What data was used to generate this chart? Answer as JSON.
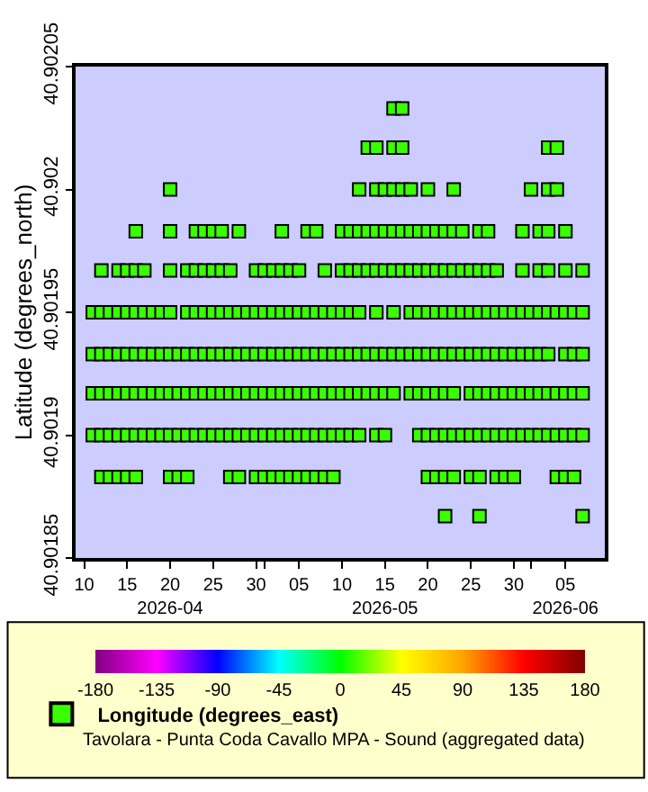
{
  "chart_data": {
    "type": "scatter",
    "ylabel": "Latitude (degrees_north)",
    "marker": "square",
    "legend": "bottom",
    "grid": false,
    "ylim": [
      40.90185,
      40.90205
    ],
    "yticks": [
      40.90185,
      40.9019,
      40.90195,
      40.902,
      40.90205
    ],
    "xlim": [
      "2026-04-09",
      "2026-06-09T14:00"
    ],
    "xticks": [
      {
        "value": "2026-04-10",
        "label": "10"
      },
      {
        "value": "2026-04-15",
        "label": "15"
      },
      {
        "value": "2026-04-20",
        "label": "20\n2026-04"
      },
      {
        "value": "2026-04-25",
        "label": "25"
      },
      {
        "value": "2026-04-30",
        "label": "30"
      },
      {
        "value": "2026-05-01",
        "label": null
      },
      {
        "value": "2026-05-05",
        "label": "05"
      },
      {
        "value": "2026-05-10",
        "label": "10"
      },
      {
        "value": "2026-05-15",
        "label": "15\n2026-05"
      },
      {
        "value": "2026-05-20",
        "label": "20"
      },
      {
        "value": "2026-05-25",
        "label": "25"
      },
      {
        "value": "2026-05-30",
        "label": "30"
      },
      {
        "value": "2026-06-01",
        "label": null
      },
      {
        "value": "2026-06-05",
        "label": "05\n2026-06"
      }
    ],
    "clim": [
      -180,
      180
    ],
    "cticks": [
      -180,
      -135,
      -90,
      -45,
      0,
      45,
      90,
      135,
      180
    ],
    "annotations": [
      "Tavolara - Punta Coda Cavallo MPA - Sound (aggregated data)"
    ],
    "series": [
      {
        "name": "Longitude (degrees_east)",
        "x": [
          "2026-05-16",
          "2026-05-17"
        ],
        "values": [
          40.902033,
          40.902033
        ],
        "cvalues": [
          10,
          10
        ]
      },
      {
        "x": [
          "2026-05-13",
          "2026-05-14",
          "2026-05-16",
          "2026-05-17",
          "2026-06-03",
          "2026-06-04"
        ],
        "values": [
          40.902017,
          40.902017,
          40.902017,
          40.902017,
          40.902017,
          40.902017
        ],
        "cvalues": [
          10,
          10,
          10,
          10,
          10,
          10
        ]
      },
      {
        "x": [
          "2026-04-20",
          "2026-05-12",
          "2026-05-14",
          "2026-05-15",
          "2026-05-16",
          "2026-05-17",
          "2026-05-18",
          "2026-05-20",
          "2026-05-23",
          "2026-06-01",
          "2026-06-03",
          "2026-06-04"
        ],
        "values": [
          40.902,
          40.902,
          40.902,
          40.902,
          40.902,
          40.902,
          40.902,
          40.902,
          40.902,
          40.902,
          40.902,
          40.902
        ],
        "cvalues": [
          10,
          10,
          10,
          10,
          10,
          10,
          10,
          10,
          10,
          10,
          10,
          10
        ]
      },
      {
        "x": [
          "2026-04-16",
          "2026-04-20",
          "2026-04-23",
          "2026-04-24",
          "2026-04-25",
          "2026-04-26",
          "2026-04-28",
          "2026-05-03",
          "2026-05-06",
          "2026-05-07",
          "2026-05-10",
          "2026-05-11",
          "2026-05-12",
          "2026-05-13",
          "2026-05-14",
          "2026-05-15",
          "2026-05-16",
          "2026-05-17",
          "2026-05-18",
          "2026-05-19",
          "2026-05-20",
          "2026-05-21",
          "2026-05-22",
          "2026-05-23",
          "2026-05-24",
          "2026-05-26",
          "2026-05-27",
          "2026-05-31",
          "2026-06-02",
          "2026-06-03",
          "2026-06-05"
        ],
        "values": [
          40.901983,
          40.901983,
          40.901983,
          40.901983,
          40.901983,
          40.901983,
          40.901983,
          40.901983,
          40.901983,
          40.901983,
          40.901983,
          40.901983,
          40.901983,
          40.901983,
          40.901983,
          40.901983,
          40.901983,
          40.901983,
          40.901983,
          40.901983,
          40.901983,
          40.901983,
          40.901983,
          40.901983,
          40.901983,
          40.901983,
          40.901983,
          40.901983,
          40.901983,
          40.901983,
          40.901983
        ],
        "cvalues": [
          10,
          10,
          10,
          10,
          10,
          10,
          10,
          10,
          10,
          10,
          10,
          10,
          10,
          10,
          10,
          10,
          10,
          10,
          10,
          10,
          10,
          10,
          10,
          10,
          10,
          10,
          10,
          10,
          10,
          10,
          10
        ]
      },
      {
        "x": [
          "2026-04-12",
          "2026-04-14",
          "2026-04-15",
          "2026-04-16",
          "2026-04-17",
          "2026-04-20",
          "2026-04-22",
          "2026-04-23",
          "2026-04-24",
          "2026-04-25",
          "2026-04-26",
          "2026-04-27",
          "2026-04-30",
          "2026-05-01",
          "2026-05-02",
          "2026-05-03",
          "2026-05-04",
          "2026-05-05",
          "2026-05-08",
          "2026-05-10",
          "2026-05-11",
          "2026-05-12",
          "2026-05-13",
          "2026-05-14",
          "2026-05-15",
          "2026-05-16",
          "2026-05-17",
          "2026-05-18",
          "2026-05-19",
          "2026-05-20",
          "2026-05-21",
          "2026-05-22",
          "2026-05-23",
          "2026-05-24",
          "2026-05-25",
          "2026-05-26",
          "2026-05-27",
          "2026-05-28",
          "2026-05-31",
          "2026-06-02",
          "2026-06-03",
          "2026-06-05",
          "2026-06-07"
        ],
        "values": [
          40.901967,
          40.901967,
          40.901967,
          40.901967,
          40.901967,
          40.901967,
          40.901967,
          40.901967,
          40.901967,
          40.901967,
          40.901967,
          40.901967,
          40.901967,
          40.901967,
          40.901967,
          40.901967,
          40.901967,
          40.901967,
          40.901967,
          40.901967,
          40.901967,
          40.901967,
          40.901967,
          40.901967,
          40.901967,
          40.901967,
          40.901967,
          40.901967,
          40.901967,
          40.901967,
          40.901967,
          40.901967,
          40.901967,
          40.901967,
          40.901967,
          40.901967,
          40.901967,
          40.901967,
          40.901967,
          40.901967,
          40.901967,
          40.901967,
          40.901967
        ],
        "cvalues": [
          10,
          10,
          10,
          10,
          10,
          10,
          10,
          10,
          10,
          10,
          10,
          10,
          10,
          10,
          10,
          10,
          10,
          10,
          10,
          10,
          10,
          10,
          10,
          10,
          10,
          10,
          10,
          10,
          10,
          10,
          10,
          10,
          10,
          10,
          10,
          10,
          10,
          10,
          10,
          10,
          10,
          10,
          10
        ]
      },
      {
        "x": [
          "2026-04-11",
          "2026-04-12",
          "2026-04-13",
          "2026-04-14",
          "2026-04-15",
          "2026-04-16",
          "2026-04-17",
          "2026-04-18",
          "2026-04-19",
          "2026-04-20",
          "2026-04-22",
          "2026-04-23",
          "2026-04-24",
          "2026-04-25",
          "2026-04-26",
          "2026-04-27",
          "2026-04-28",
          "2026-04-29",
          "2026-04-30",
          "2026-05-01",
          "2026-05-02",
          "2026-05-03",
          "2026-05-04",
          "2026-05-05",
          "2026-05-06",
          "2026-05-07",
          "2026-05-08",
          "2026-05-09",
          "2026-05-10",
          "2026-05-11",
          "2026-05-12",
          "2026-05-14",
          "2026-05-16",
          "2026-05-18",
          "2026-05-19",
          "2026-05-20",
          "2026-05-21",
          "2026-05-22",
          "2026-05-23",
          "2026-05-24",
          "2026-05-25",
          "2026-05-26",
          "2026-05-27",
          "2026-05-28",
          "2026-05-29",
          "2026-05-30",
          "2026-05-31",
          "2026-06-01",
          "2026-06-02",
          "2026-06-03",
          "2026-06-04",
          "2026-06-05",
          "2026-06-06",
          "2026-06-07"
        ],
        "values": [
          40.90195,
          40.90195,
          40.90195,
          40.90195,
          40.90195,
          40.90195,
          40.90195,
          40.90195,
          40.90195,
          40.90195,
          40.90195,
          40.90195,
          40.90195,
          40.90195,
          40.90195,
          40.90195,
          40.90195,
          40.90195,
          40.90195,
          40.90195,
          40.90195,
          40.90195,
          40.90195,
          40.90195,
          40.90195,
          40.90195,
          40.90195,
          40.90195,
          40.90195,
          40.90195,
          40.90195,
          40.90195,
          40.90195,
          40.90195,
          40.90195,
          40.90195,
          40.90195,
          40.90195,
          40.90195,
          40.90195,
          40.90195,
          40.90195,
          40.90195,
          40.90195,
          40.90195,
          40.90195,
          40.90195,
          40.90195,
          40.90195,
          40.90195,
          40.90195,
          40.90195,
          40.90195,
          40.90195
        ],
        "cvalues": [
          10,
          10,
          10,
          10,
          10,
          10,
          10,
          10,
          10,
          10,
          10,
          10,
          10,
          10,
          10,
          10,
          10,
          10,
          10,
          10,
          10,
          10,
          10,
          10,
          10,
          10,
          10,
          10,
          10,
          10,
          10,
          10,
          10,
          10,
          10,
          10,
          10,
          10,
          10,
          10,
          10,
          10,
          10,
          10,
          10,
          10,
          10,
          10,
          10,
          10,
          10,
          10,
          10,
          10
        ]
      },
      {
        "x": [
          "2026-04-11",
          "2026-04-12",
          "2026-04-13",
          "2026-04-14",
          "2026-04-15",
          "2026-04-16",
          "2026-04-17",
          "2026-04-18",
          "2026-04-19",
          "2026-04-20",
          "2026-04-21",
          "2026-04-22",
          "2026-04-23",
          "2026-04-24",
          "2026-04-25",
          "2026-04-26",
          "2026-04-27",
          "2026-04-28",
          "2026-04-29",
          "2026-04-30",
          "2026-05-01",
          "2026-05-02",
          "2026-05-03",
          "2026-05-04",
          "2026-05-05",
          "2026-05-06",
          "2026-05-07",
          "2026-05-08",
          "2026-05-09",
          "2026-05-10",
          "2026-05-11",
          "2026-05-12",
          "2026-05-13",
          "2026-05-14",
          "2026-05-15",
          "2026-05-16",
          "2026-05-17",
          "2026-05-18",
          "2026-05-19",
          "2026-05-20",
          "2026-05-21",
          "2026-05-22",
          "2026-05-23",
          "2026-05-24",
          "2026-05-25",
          "2026-05-26",
          "2026-05-27",
          "2026-05-28",
          "2026-05-29",
          "2026-05-30",
          "2026-05-31",
          "2026-06-01",
          "2026-06-02",
          "2026-06-03",
          "2026-06-05",
          "2026-06-06",
          "2026-06-07"
        ],
        "values": [
          40.901933,
          40.901933,
          40.901933,
          40.901933,
          40.901933,
          40.901933,
          40.901933,
          40.901933,
          40.901933,
          40.901933,
          40.901933,
          40.901933,
          40.901933,
          40.901933,
          40.901933,
          40.901933,
          40.901933,
          40.901933,
          40.901933,
          40.901933,
          40.901933,
          40.901933,
          40.901933,
          40.901933,
          40.901933,
          40.901933,
          40.901933,
          40.901933,
          40.901933,
          40.901933,
          40.901933,
          40.901933,
          40.901933,
          40.901933,
          40.901933,
          40.901933,
          40.901933,
          40.901933,
          40.901933,
          40.901933,
          40.901933,
          40.901933,
          40.901933,
          40.901933,
          40.901933,
          40.901933,
          40.901933,
          40.901933,
          40.901933,
          40.901933,
          40.901933,
          40.901933,
          40.901933,
          40.901933,
          40.901933,
          40.901933,
          40.901933
        ],
        "cvalues": [
          10,
          10,
          10,
          10,
          10,
          10,
          10,
          10,
          10,
          10,
          10,
          10,
          10,
          10,
          10,
          10,
          10,
          10,
          10,
          10,
          10,
          10,
          10,
          10,
          10,
          10,
          10,
          10,
          10,
          10,
          10,
          10,
          10,
          10,
          10,
          10,
          10,
          10,
          10,
          10,
          10,
          10,
          10,
          10,
          10,
          10,
          10,
          10,
          10,
          10,
          10,
          10,
          10,
          10,
          10,
          10,
          10
        ]
      },
      {
        "x": [
          "2026-04-11",
          "2026-04-12",
          "2026-04-13",
          "2026-04-14",
          "2026-04-15",
          "2026-04-16",
          "2026-04-17",
          "2026-04-18",
          "2026-04-19",
          "2026-04-20",
          "2026-04-21",
          "2026-04-22",
          "2026-04-23",
          "2026-04-24",
          "2026-04-25",
          "2026-04-26",
          "2026-04-27",
          "2026-04-28",
          "2026-04-29",
          "2026-04-30",
          "2026-05-01",
          "2026-05-02",
          "2026-05-03",
          "2026-05-04",
          "2026-05-05",
          "2026-05-06",
          "2026-05-07",
          "2026-05-08",
          "2026-05-09",
          "2026-05-10",
          "2026-05-11",
          "2026-05-12",
          "2026-05-13",
          "2026-05-14",
          "2026-05-15",
          "2026-05-16",
          "2026-05-18",
          "2026-05-19",
          "2026-05-20",
          "2026-05-21",
          "2026-05-22",
          "2026-05-23",
          "2026-05-25",
          "2026-05-26",
          "2026-05-27",
          "2026-05-28",
          "2026-05-29",
          "2026-05-30",
          "2026-05-31",
          "2026-06-01",
          "2026-06-02",
          "2026-06-03",
          "2026-06-04",
          "2026-06-05",
          "2026-06-06",
          "2026-06-07"
        ],
        "values": [
          40.901917,
          40.901917,
          40.901917,
          40.901917,
          40.901917,
          40.901917,
          40.901917,
          40.901917,
          40.901917,
          40.901917,
          40.901917,
          40.901917,
          40.901917,
          40.901917,
          40.901917,
          40.901917,
          40.901917,
          40.901917,
          40.901917,
          40.901917,
          40.901917,
          40.901917,
          40.901917,
          40.901917,
          40.901917,
          40.901917,
          40.901917,
          40.901917,
          40.901917,
          40.901917,
          40.901917,
          40.901917,
          40.901917,
          40.901917,
          40.901917,
          40.901917,
          40.901917,
          40.901917,
          40.901917,
          40.901917,
          40.901917,
          40.901917,
          40.901917,
          40.901917,
          40.901917,
          40.901917,
          40.901917,
          40.901917,
          40.901917,
          40.901917,
          40.901917,
          40.901917,
          40.901917,
          40.901917,
          40.901917,
          40.901917
        ],
        "cvalues": [
          10,
          10,
          10,
          10,
          10,
          10,
          10,
          10,
          10,
          10,
          10,
          10,
          10,
          10,
          10,
          10,
          10,
          10,
          10,
          10,
          10,
          10,
          10,
          10,
          10,
          10,
          10,
          10,
          10,
          10,
          10,
          10,
          10,
          10,
          10,
          10,
          10,
          10,
          10,
          10,
          10,
          10,
          10,
          10,
          10,
          10,
          10,
          10,
          10,
          10,
          10,
          10,
          10,
          10,
          10,
          10
        ]
      },
      {
        "x": [
          "2026-04-11",
          "2026-04-12",
          "2026-04-13",
          "2026-04-14",
          "2026-04-15",
          "2026-04-16",
          "2026-04-17",
          "2026-04-18",
          "2026-04-19",
          "2026-04-20",
          "2026-04-21",
          "2026-04-22",
          "2026-04-23",
          "2026-04-24",
          "2026-04-25",
          "2026-04-26",
          "2026-04-27",
          "2026-04-28",
          "2026-04-29",
          "2026-04-30",
          "2026-05-01",
          "2026-05-02",
          "2026-05-03",
          "2026-05-04",
          "2026-05-05",
          "2026-05-06",
          "2026-05-07",
          "2026-05-08",
          "2026-05-09",
          "2026-05-10",
          "2026-05-11",
          "2026-05-12",
          "2026-05-14",
          "2026-05-15",
          "2026-05-19",
          "2026-05-20",
          "2026-05-21",
          "2026-05-22",
          "2026-05-23",
          "2026-05-24",
          "2026-05-25",
          "2026-05-26",
          "2026-05-27",
          "2026-05-28",
          "2026-05-29",
          "2026-05-30",
          "2026-05-31",
          "2026-06-01",
          "2026-06-02",
          "2026-06-03",
          "2026-06-04",
          "2026-06-05",
          "2026-06-06",
          "2026-06-07"
        ],
        "values": [
          40.9019,
          40.9019,
          40.9019,
          40.9019,
          40.9019,
          40.9019,
          40.9019,
          40.9019,
          40.9019,
          40.9019,
          40.9019,
          40.9019,
          40.9019,
          40.9019,
          40.9019,
          40.9019,
          40.9019,
          40.9019,
          40.9019,
          40.9019,
          40.9019,
          40.9019,
          40.9019,
          40.9019,
          40.9019,
          40.9019,
          40.9019,
          40.9019,
          40.9019,
          40.9019,
          40.9019,
          40.9019,
          40.9019,
          40.9019,
          40.9019,
          40.9019,
          40.9019,
          40.9019,
          40.9019,
          40.9019,
          40.9019,
          40.9019,
          40.9019,
          40.9019,
          40.9019,
          40.9019,
          40.9019,
          40.9019,
          40.9019,
          40.9019,
          40.9019,
          40.9019,
          40.9019,
          40.9019
        ],
        "cvalues": [
          10,
          10,
          10,
          10,
          10,
          10,
          10,
          10,
          10,
          10,
          10,
          10,
          10,
          10,
          10,
          10,
          10,
          10,
          10,
          10,
          10,
          10,
          10,
          10,
          10,
          10,
          10,
          10,
          10,
          10,
          10,
          10,
          10,
          10,
          10,
          10,
          10,
          10,
          10,
          10,
          10,
          10,
          10,
          10,
          10,
          10,
          10,
          10,
          10,
          10,
          10,
          10,
          10,
          10
        ]
      },
      {
        "x": [
          "2026-04-12",
          "2026-04-13",
          "2026-04-14",
          "2026-04-15",
          "2026-04-16",
          "2026-04-20",
          "2026-04-21",
          "2026-04-22",
          "2026-04-27",
          "2026-04-28",
          "2026-04-30",
          "2026-05-01",
          "2026-05-02",
          "2026-05-03",
          "2026-05-04",
          "2026-05-05",
          "2026-05-06",
          "2026-05-07",
          "2026-05-08",
          "2026-05-09",
          "2026-05-20",
          "2026-05-21",
          "2026-05-22",
          "2026-05-23",
          "2026-05-25",
          "2026-05-26",
          "2026-05-28",
          "2026-05-29",
          "2026-05-30",
          "2026-06-04",
          "2026-06-05",
          "2026-06-06"
        ],
        "values": [
          40.901883,
          40.901883,
          40.901883,
          40.901883,
          40.901883,
          40.901883,
          40.901883,
          40.901883,
          40.901883,
          40.901883,
          40.901883,
          40.901883,
          40.901883,
          40.901883,
          40.901883,
          40.901883,
          40.901883,
          40.901883,
          40.901883,
          40.901883,
          40.901883,
          40.901883,
          40.901883,
          40.901883,
          40.901883,
          40.901883,
          40.901883,
          40.901883,
          40.901883,
          40.901883,
          40.901883,
          40.901883
        ],
        "cvalues": [
          10,
          10,
          10,
          10,
          10,
          10,
          10,
          10,
          10,
          10,
          10,
          10,
          10,
          10,
          10,
          10,
          10,
          10,
          10,
          10,
          10,
          10,
          10,
          10,
          10,
          10,
          10,
          10,
          10,
          10,
          10,
          10
        ]
      },
      {
        "x": [
          "2026-05-22",
          "2026-05-26",
          "2026-06-07"
        ],
        "values": [
          40.901867,
          40.901867,
          40.901867
        ],
        "cvalues": [
          10,
          10,
          10
        ]
      }
    ]
  }
}
